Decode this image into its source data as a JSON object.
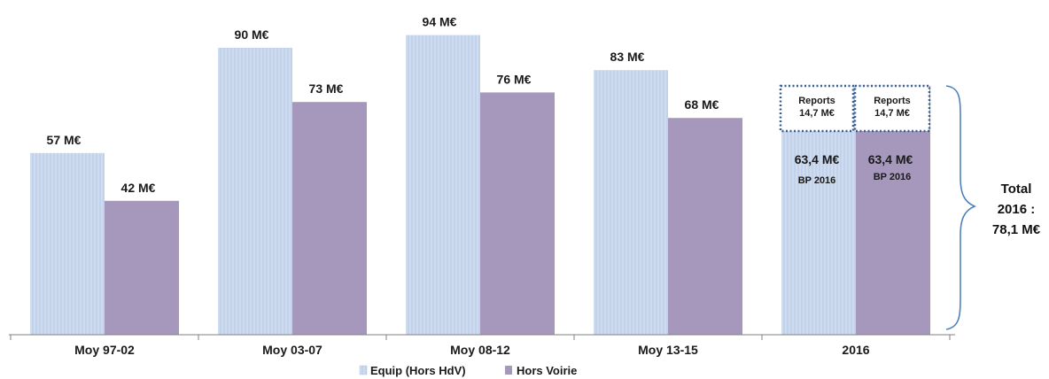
{
  "chart_data": {
    "type": "bar",
    "categories": [
      "Moy 97-02",
      "Moy 03-07",
      "Moy 08-12",
      "Moy 13-15",
      "2016"
    ],
    "series": [
      {
        "name": "Equip (Hors HdV)",
        "color": "#c9d8ec",
        "values": [
          57,
          90,
          94,
          83,
          78.1
        ],
        "labels": [
          "57 M€",
          "90 M€",
          "94 M€",
          "83 M€",
          ""
        ]
      },
      {
        "name": "Hors Voirie",
        "color": "#a697bd",
        "values": [
          42,
          73,
          76,
          68,
          78.1
        ],
        "labels": [
          "42 M€",
          "73 M€",
          "76 M€",
          "68 M€",
          ""
        ]
      }
    ],
    "stack_2016": {
      "base_value": 63.4,
      "base_label": "63,4 M€",
      "base_sublabel": "BP 2016",
      "report_value": 14.7,
      "report_label_1": "Reports",
      "report_label_2": "14,7 M€"
    },
    "total_annotation": {
      "line1": "Total",
      "line2": "2016 :",
      "line3": "78,1 M€"
    },
    "ylim": [
      0,
      100
    ],
    "grid": false,
    "legend_position": "bottom-center"
  }
}
